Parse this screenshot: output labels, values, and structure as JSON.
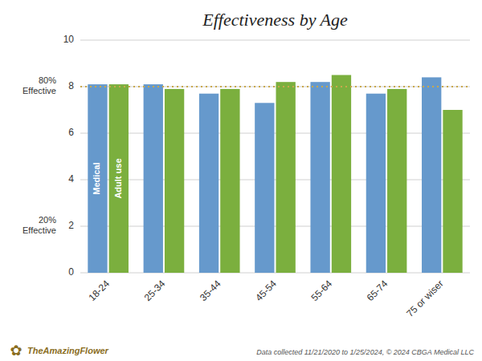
{
  "chart_data": {
    "type": "bar",
    "title": "Effectiveness by Age",
    "categories": [
      "18-24",
      "25-34",
      "35-44",
      "45-54",
      "55-64",
      "65-74",
      "75 or wiser"
    ],
    "series": [
      {
        "name": "Medical",
        "color": "#6699CC",
        "values": [
          8.1,
          8.1,
          7.7,
          7.3,
          8.2,
          7.7,
          8.4
        ]
      },
      {
        "name": "Adult use",
        "color": "#7BAF3E",
        "values": [
          8.1,
          7.9,
          7.9,
          8.2,
          8.5,
          7.9,
          7.0
        ]
      }
    ],
    "ylim": [
      0,
      10
    ],
    "yticks": [
      0,
      2,
      4,
      6,
      8,
      10
    ],
    "grid": true,
    "reference_line": {
      "y": 8.0,
      "color": "#C9A84C"
    },
    "annotations": [
      {
        "text": "80%\nEffective",
        "y": 8.0
      },
      {
        "text": "20%\nEffective",
        "y": 2.0
      }
    ],
    "footnote": "Data collected 11/21/2020 to 1/25/2024, © 2024 CBGA Medical LLC",
    "logo_symbol": "✿",
    "logo_text": "TheAmazingFlower"
  }
}
